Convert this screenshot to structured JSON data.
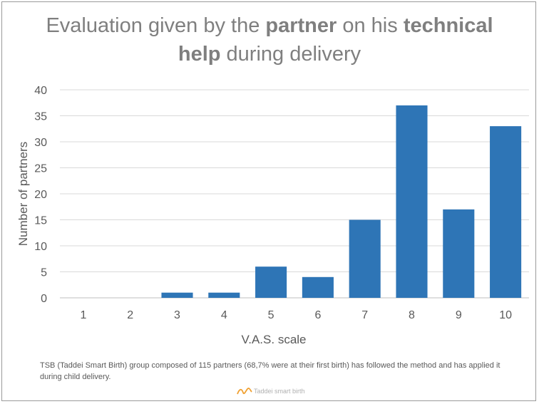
{
  "chart_data": {
    "type": "bar",
    "title_parts": [
      {
        "text": "Evaluation given by the ",
        "bold": false
      },
      {
        "text": "partner",
        "bold": true
      },
      {
        "text": " on his ",
        "bold": false
      },
      {
        "text": "technical",
        "bold": true
      },
      {
        "text": "help",
        "bold": true,
        "break_before": true
      },
      {
        "text": " during delivery",
        "bold": false
      }
    ],
    "xlabel": "V.A.S. scale",
    "ylabel": "Number of partners",
    "categories": [
      "1",
      "2",
      "3",
      "4",
      "5",
      "6",
      "7",
      "8",
      "9",
      "10"
    ],
    "values": [
      0,
      0,
      1,
      1,
      6,
      4,
      15,
      37,
      17,
      33
    ],
    "ylim": [
      0,
      40
    ],
    "yticks": [
      0,
      5,
      10,
      15,
      20,
      25,
      30,
      35,
      40
    ],
    "grid": true,
    "bar_color": "#2e75b6"
  },
  "footnote": "TSB (Taddei Smart Birth) group composed of 115 partners (68,7% were at their first birth) has followed the method and has applied it during child delivery.",
  "logo": {
    "text": "Taddei smart birth",
    "icon": "taddei-smart-birth-logo-icon"
  }
}
